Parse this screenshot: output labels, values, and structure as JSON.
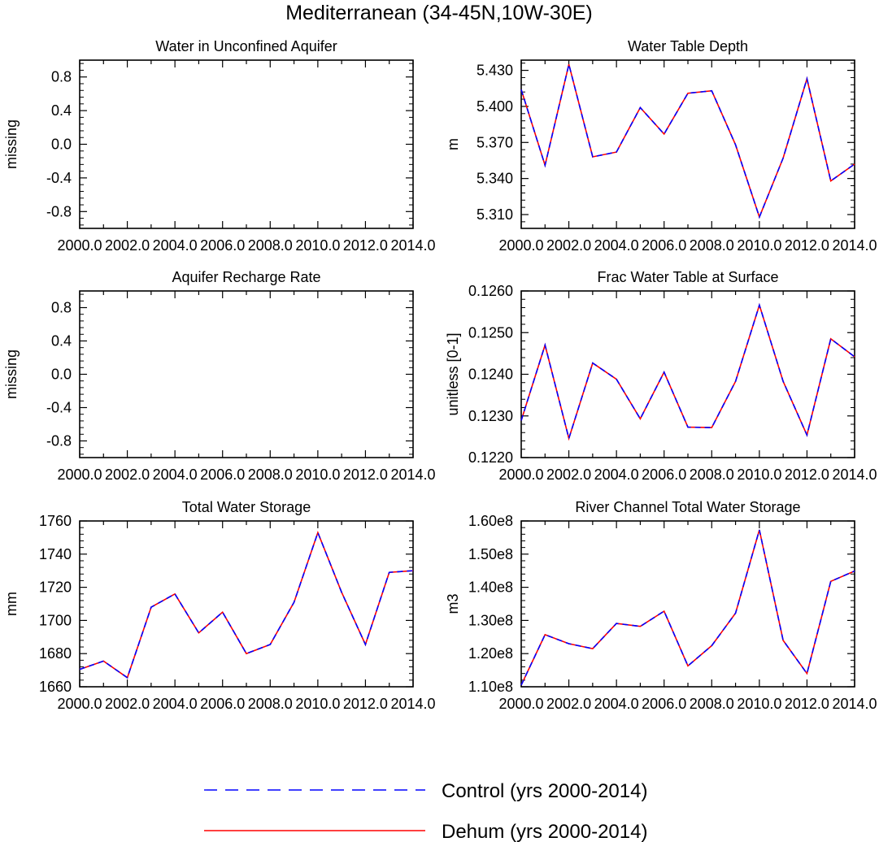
{
  "title": "Mediterranean (34-45N,10W-30E)",
  "colors": {
    "control": "#0000ff",
    "dehum": "#ff0000",
    "axis": "#000000"
  },
  "legend": [
    {
      "key": "control",
      "label": "Control (yrs 2000-2014)",
      "style": "dashed"
    },
    {
      "key": "dehum",
      "label": "Dehum (yrs 2000-2014)",
      "style": "solid"
    }
  ],
  "chart_data": [
    {
      "type": "line",
      "title": "Water in Unconfined Aquifer",
      "ylabel": "missing",
      "xlabel": "",
      "xlim": [
        2000,
        2014
      ],
      "ylim": [
        -1.0,
        1.0
      ],
      "xticks": [
        "2000.0",
        "2002.0",
        "2004.0",
        "2006.0",
        "2008.0",
        "2010.0",
        "2012.0",
        "2014.0"
      ],
      "yticks": [
        -0.8,
        -0.4,
        0.0,
        0.4,
        0.8
      ],
      "ytick_labels": [
        "-0.8",
        "-0.4",
        "0.0",
        "0.4",
        "0.8"
      ],
      "x": [],
      "series": []
    },
    {
      "type": "line",
      "title": "Water Table Depth",
      "ylabel": "m",
      "xlabel": "",
      "xlim": [
        2000,
        2014
      ],
      "ylim": [
        5.2985,
        5.4385
      ],
      "xticks": [
        "2000.0",
        "2002.0",
        "2004.0",
        "2006.0",
        "2008.0",
        "2010.0",
        "2012.0",
        "2014.0"
      ],
      "yticks": [
        5.31,
        5.34,
        5.37,
        5.4,
        5.43
      ],
      "ytick_labels": [
        "5.310",
        "5.340",
        "5.370",
        "5.400",
        "5.430"
      ],
      "x": [
        2000,
        2001,
        2002,
        2003,
        2004,
        2005,
        2006,
        2007,
        2008,
        2009,
        2010,
        2011,
        2012,
        2013,
        2014
      ],
      "series": [
        {
          "name": "Control (yrs 2000-2014)",
          "values": [
            5.414,
            5.351,
            5.435,
            5.358,
            5.362,
            5.399,
            5.377,
            5.411,
            5.413,
            5.368,
            5.308,
            5.357,
            5.423,
            5.338,
            5.352
          ]
        },
        {
          "name": "Dehum (yrs 2000-2014)",
          "values": [
            5.414,
            5.351,
            5.435,
            5.358,
            5.362,
            5.399,
            5.377,
            5.411,
            5.413,
            5.368,
            5.308,
            5.357,
            5.423,
            5.338,
            5.352
          ]
        }
      ]
    },
    {
      "type": "line",
      "title": "Aquifer Recharge Rate",
      "ylabel": "missing",
      "xlabel": "",
      "xlim": [
        2000,
        2014
      ],
      "ylim": [
        -1.0,
        1.0
      ],
      "xticks": [
        "2000.0",
        "2002.0",
        "2004.0",
        "2006.0",
        "2008.0",
        "2010.0",
        "2012.0",
        "2014.0"
      ],
      "yticks": [
        -0.8,
        -0.4,
        0.0,
        0.4,
        0.8
      ],
      "ytick_labels": [
        "-0.8",
        "-0.4",
        "0.0",
        "0.4",
        "0.8"
      ],
      "x": [],
      "series": []
    },
    {
      "type": "line",
      "title": "Frac Water Table at Surface",
      "ylabel": "unitless [0-1]",
      "xlabel": "",
      "xlim": [
        2000,
        2014
      ],
      "ylim": [
        0.122,
        0.126
      ],
      "xticks": [
        "2000.0",
        "2002.0",
        "2004.0",
        "2006.0",
        "2008.0",
        "2010.0",
        "2012.0",
        "2014.0"
      ],
      "yticks": [
        0.122,
        0.123,
        0.124,
        0.125,
        0.126
      ],
      "ytick_labels": [
        "0.1220",
        "0.1230",
        "0.1240",
        "0.1250",
        "0.1260"
      ],
      "x": [
        2000,
        2001,
        2002,
        2003,
        2004,
        2005,
        2006,
        2007,
        2008,
        2009,
        2010,
        2011,
        2012,
        2013,
        2014
      ],
      "series": [
        {
          "name": "Control (yrs 2000-2014)",
          "values": [
            0.12289,
            0.1247,
            0.12246,
            0.12427,
            0.12388,
            0.12293,
            0.12405,
            0.12273,
            0.12272,
            0.12383,
            0.12566,
            0.12383,
            0.12254,
            0.12485,
            0.12442
          ]
        },
        {
          "name": "Dehum (yrs 2000-2014)",
          "values": [
            0.12289,
            0.1247,
            0.12246,
            0.12427,
            0.12388,
            0.12293,
            0.12405,
            0.12273,
            0.12272,
            0.12383,
            0.12566,
            0.12383,
            0.12254,
            0.12485,
            0.12442
          ]
        }
      ]
    },
    {
      "type": "line",
      "title": "Total Water Storage",
      "ylabel": "mm",
      "xlabel": "",
      "xlim": [
        2000,
        2014
      ],
      "ylim": [
        1660,
        1760
      ],
      "xticks": [
        "2000.0",
        "2002.0",
        "2004.0",
        "2006.0",
        "2008.0",
        "2010.0",
        "2012.0",
        "2014.0"
      ],
      "yticks": [
        1660,
        1680,
        1700,
        1720,
        1740,
        1760
      ],
      "ytick_labels": [
        "1660",
        "1680",
        "1700",
        "1720",
        "1740",
        "1760"
      ],
      "x": [
        2000,
        2001,
        2002,
        2003,
        2004,
        2005,
        2006,
        2007,
        2008,
        2009,
        2010,
        2011,
        2012,
        2013,
        2014
      ],
      "series": [
        {
          "name": "Control (yrs 2000-2014)",
          "values": [
            1670.5,
            1675.5,
            1665.5,
            1708,
            1716,
            1692.5,
            1705,
            1680,
            1685.5,
            1711,
            1753,
            1717,
            1685.5,
            1729,
            1730
          ]
        },
        {
          "name": "Dehum (yrs 2000-2014)",
          "values": [
            1670.5,
            1675.5,
            1665.5,
            1708,
            1716,
            1692.5,
            1705,
            1680,
            1685.5,
            1711,
            1753,
            1717,
            1685.5,
            1729,
            1730
          ]
        }
      ]
    },
    {
      "type": "line",
      "title": "River Channel Total Water Storage",
      "ylabel": "m3",
      "xlabel": "",
      "xlim": [
        2000,
        2014
      ],
      "ylim": [
        110000000.0,
        160000000.0
      ],
      "xticks": [
        "2000.0",
        "2002.0",
        "2004.0",
        "2006.0",
        "2008.0",
        "2010.0",
        "2012.0",
        "2014.0"
      ],
      "yticks": [
        110000000.0,
        120000000.0,
        130000000.0,
        140000000.0,
        150000000.0,
        160000000.0
      ],
      "ytick_labels": [
        "1.10e8",
        "1.20e8",
        "1.30e8",
        "1.40e8",
        "1.50e8",
        "1.60e8"
      ],
      "x": [
        2000,
        2001,
        2002,
        2003,
        2004,
        2005,
        2006,
        2007,
        2008,
        2009,
        2010,
        2011,
        2012,
        2013,
        2014
      ],
      "series": [
        {
          "name": "Control (yrs 2000-2014)",
          "values": [
            110500000.0,
            125700000.0,
            123000000.0,
            121500000.0,
            129100000.0,
            128200000.0,
            132800000.0,
            116300000.0,
            122400000.0,
            132200000.0,
            157300000.0,
            124000000.0,
            114000000.0,
            141800000.0,
            144900000.0
          ]
        },
        {
          "name": "Dehum (yrs 2000-2014)",
          "values": [
            110500000.0,
            125700000.0,
            123000000.0,
            121500000.0,
            129100000.0,
            128200000.0,
            132800000.0,
            116300000.0,
            122400000.0,
            132200000.0,
            157300000.0,
            124000000.0,
            114000000.0,
            141800000.0,
            144900000.0
          ]
        }
      ]
    }
  ]
}
